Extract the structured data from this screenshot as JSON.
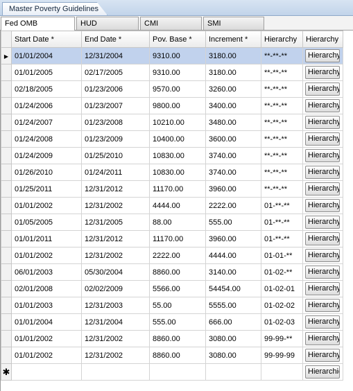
{
  "document_tab": {
    "label": "Master Poverty Guidelines"
  },
  "tabs": [
    {
      "label": "Fed OMB",
      "active": true
    },
    {
      "label": "HUD",
      "active": false
    },
    {
      "label": "CMI",
      "active": false
    },
    {
      "label": "SMI",
      "active": false
    }
  ],
  "grid": {
    "columns": [
      "Start Date *",
      "End Date *",
      "Pov. Base *",
      "Increment *",
      "Hierarchy",
      "Hierarchy"
    ],
    "current_row_marker": "▶",
    "new_row_marker": "✱",
    "button_label": "Hierarchy",
    "new_row_button_label": "Hierarchie",
    "rows": [
      {
        "start": "01/01/2004",
        "end": "12/31/2004",
        "base": "9310.00",
        "inc": "3180.00",
        "hier": "**-**-**"
      },
      {
        "start": "01/01/2005",
        "end": "02/17/2005",
        "base": "9310.00",
        "inc": "3180.00",
        "hier": "**-**-**"
      },
      {
        "start": "02/18/2005",
        "end": "01/23/2006",
        "base": "9570.00",
        "inc": "3260.00",
        "hier": "**-**-**"
      },
      {
        "start": "01/24/2006",
        "end": "01/23/2007",
        "base": "9800.00",
        "inc": "3400.00",
        "hier": "**-**-**"
      },
      {
        "start": "01/24/2007",
        "end": "01/23/2008",
        "base": "10210.00",
        "inc": "3480.00",
        "hier": "**-**-**"
      },
      {
        "start": "01/24/2008",
        "end": "01/23/2009",
        "base": "10400.00",
        "inc": "3600.00",
        "hier": "**-**-**"
      },
      {
        "start": "01/24/2009",
        "end": "01/25/2010",
        "base": "10830.00",
        "inc": "3740.00",
        "hier": "**-**-**"
      },
      {
        "start": "01/26/2010",
        "end": "01/24/2011",
        "base": "10830.00",
        "inc": "3740.00",
        "hier": "**-**-**"
      },
      {
        "start": "01/25/2011",
        "end": "12/31/2012",
        "base": "11170.00",
        "inc": "3960.00",
        "hier": "**-**-**"
      },
      {
        "start": "01/01/2002",
        "end": "12/31/2002",
        "base": "4444.00",
        "inc": "2222.00",
        "hier": "01-**-**"
      },
      {
        "start": "01/05/2005",
        "end": "12/31/2005",
        "base": "88.00",
        "inc": "555.00",
        "hier": "01-**-**"
      },
      {
        "start": "01/01/2011",
        "end": "12/31/2012",
        "base": "11170.00",
        "inc": "3960.00",
        "hier": "01-**-**"
      },
      {
        "start": "01/01/2002",
        "end": "12/31/2002",
        "base": "2222.00",
        "inc": "4444.00",
        "hier": "01-01-**"
      },
      {
        "start": "06/01/2003",
        "end": "05/30/2004",
        "base": "8860.00",
        "inc": "3140.00",
        "hier": "01-02-**"
      },
      {
        "start": "02/01/2008",
        "end": "02/02/2009",
        "base": "5566.00",
        "inc": "54454.00",
        "hier": "01-02-01"
      },
      {
        "start": "01/01/2003",
        "end": "12/31/2003",
        "base": "55.00",
        "inc": "5555.00",
        "hier": "01-02-02"
      },
      {
        "start": "01/01/2004",
        "end": "12/31/2004",
        "base": "555.00",
        "inc": "666.00",
        "hier": "01-02-03"
      },
      {
        "start": "01/01/2002",
        "end": "12/31/2002",
        "base": "8860.00",
        "inc": "3080.00",
        "hier": "99-99-**"
      },
      {
        "start": "01/01/2002",
        "end": "12/31/2002",
        "base": "8860.00",
        "inc": "3080.00",
        "hier": "99-99-99"
      }
    ]
  },
  "colors": {
    "selected_row": "#c1d2ed",
    "tab_strip": "#c2d4ea"
  }
}
